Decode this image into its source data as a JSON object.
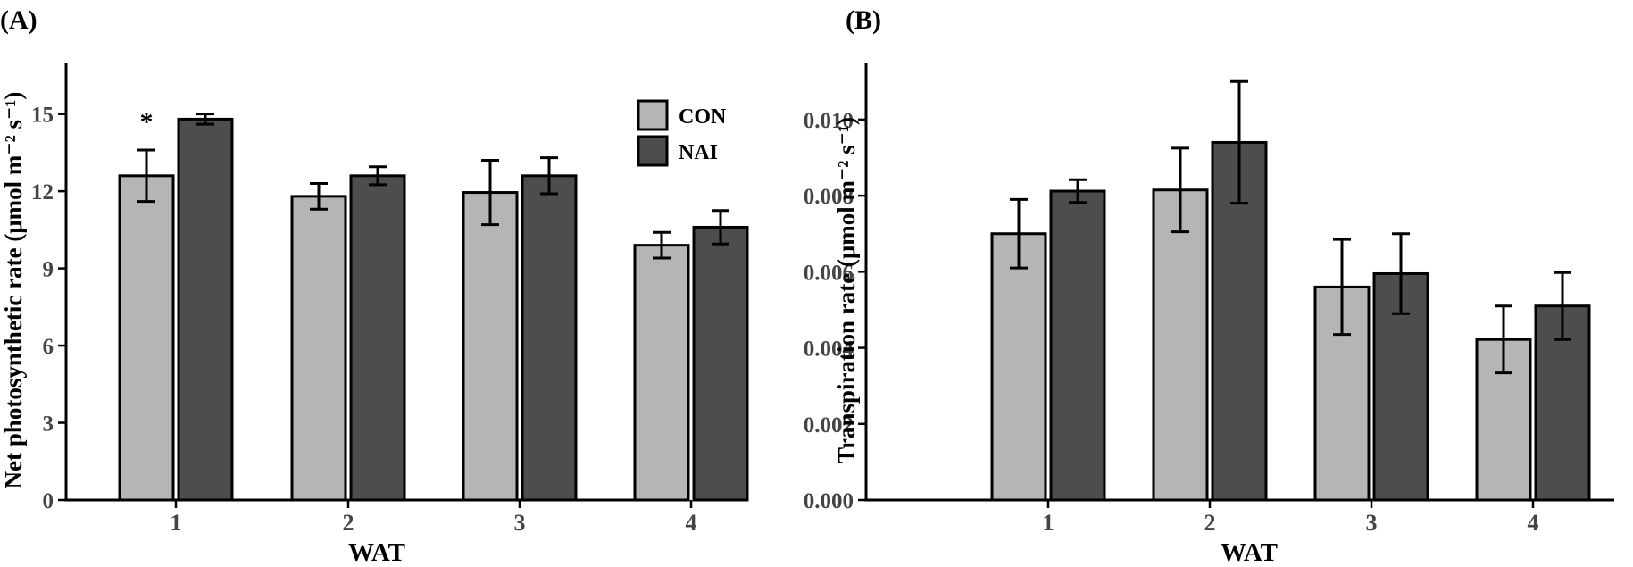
{
  "chart_data": [
    {
      "type": "bar",
      "panel_label": "(A)",
      "categories": [
        "1",
        "2",
        "3",
        "4"
      ],
      "xlabel": "WAT",
      "ylabel": "Net photosynthetic rate (μmol m⁻² s⁻¹)",
      "ylim": [
        0,
        17
      ],
      "yticks": [
        "0",
        "3",
        "6",
        "9",
        "12",
        "15"
      ],
      "ytick_values": [
        0,
        3,
        6,
        9,
        12,
        15
      ],
      "series": [
        {
          "name": "CON",
          "color": "#b5b5b5",
          "values": [
            12.6,
            11.8,
            11.95,
            9.9
          ],
          "errors": [
            1.0,
            0.5,
            1.25,
            0.5
          ]
        },
        {
          "name": "NAI",
          "color": "#4d4d4d",
          "values": [
            14.8,
            12.6,
            12.6,
            10.6
          ],
          "errors": [
            0.2,
            0.35,
            0.7,
            0.65
          ]
        }
      ],
      "annotations": [
        {
          "text": "*",
          "category": "1"
        }
      ],
      "legend": {
        "entries": [
          "CON",
          "NAI"
        ],
        "placement": "top-right"
      },
      "grid": false
    },
    {
      "type": "bar",
      "panel_label": "(B)",
      "categories": [
        "1",
        "2",
        "3",
        "4"
      ],
      "xlabel": "WAT",
      "ylabel": "Transpiration rate (μmol m⁻² s⁻¹)",
      "ylim": [
        0,
        0.0115
      ],
      "yticks": [
        "0.000",
        "0.002",
        "0.004",
        "0.006",
        "0.008",
        "0.010"
      ],
      "ytick_values": [
        0,
        0.002,
        0.004,
        0.006,
        0.008,
        0.01
      ],
      "series": [
        {
          "name": "CON",
          "color": "#b5b5b5",
          "values": [
            0.007,
            0.00815,
            0.0056,
            0.00422
          ],
          "errors": [
            0.0009,
            0.0011,
            0.00125,
            0.00088
          ]
        },
        {
          "name": "NAI",
          "color": "#4d4d4d",
          "values": [
            0.00812,
            0.0094,
            0.00595,
            0.0051
          ],
          "errors": [
            0.0003,
            0.0016,
            0.00105,
            0.00088
          ]
        }
      ],
      "annotations": [],
      "grid": false
    }
  ]
}
